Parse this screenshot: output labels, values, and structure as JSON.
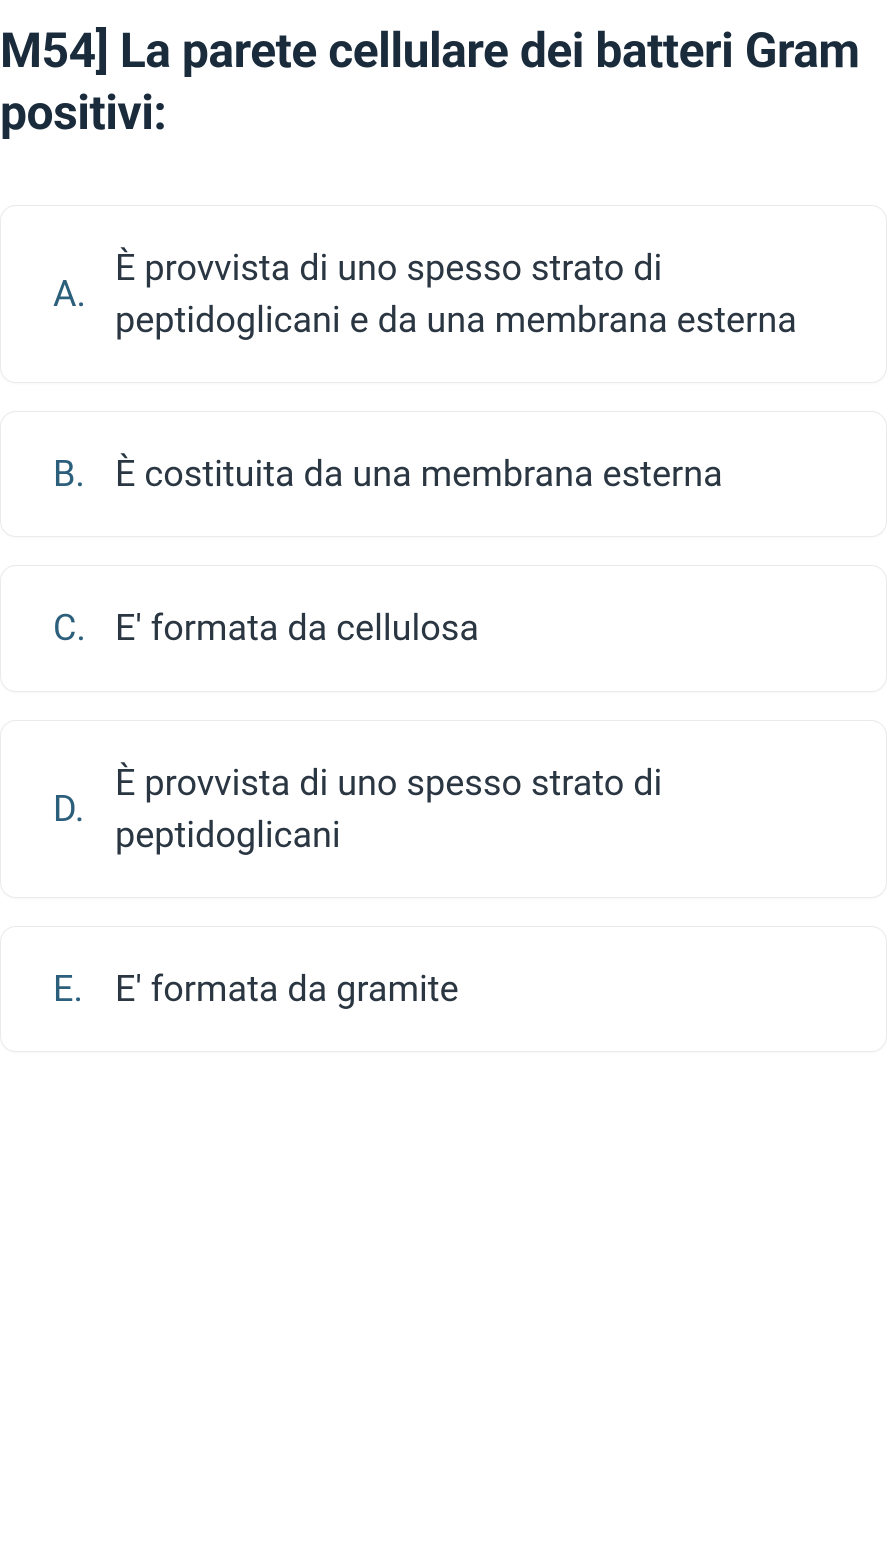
{
  "question": {
    "title": "M54] La parete cellulare dei batteri Gram positivi:"
  },
  "answers": [
    {
      "letter": "A.",
      "text": "È provvista di uno spesso strato di peptidoglicani e da una membrana esterna"
    },
    {
      "letter": "B.",
      "text": "È costituita da una membrana esterna"
    },
    {
      "letter": "C.",
      "text": "E' formata da cellulosa"
    },
    {
      "letter": "D.",
      "text": "È provvista di uno spesso strato di peptidoglicani"
    },
    {
      "letter": "E.",
      "text": "E' formata da gramite"
    }
  ],
  "colors": {
    "title_color": "#1a2b3c",
    "letter_color": "#2c5f7c",
    "text_color": "#2a3642",
    "card_border": "#e8eaed",
    "background": "#ffffff"
  },
  "typography": {
    "title_fontsize": 48,
    "title_weight": 700,
    "answer_fontsize": 36,
    "answer_weight": 400
  }
}
